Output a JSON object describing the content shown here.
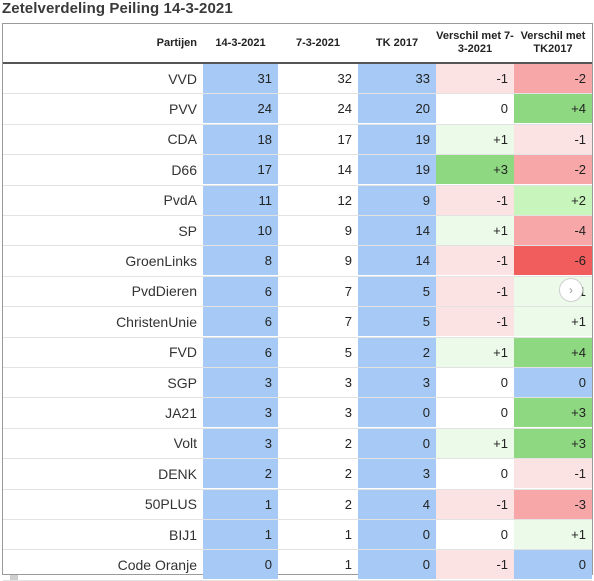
{
  "title": "Zetelverdeling Peiling 14-3-2021",
  "headers": {
    "party": "Partijen",
    "poll_current": "14-3-2021",
    "poll_previous": "7-3-2021",
    "election": "TK 2017",
    "diff_prev": "Verschil met 7-3-2021",
    "diff_election": "Verschil met TK2017"
  },
  "colors": {
    "blue": "#a6c9f5",
    "neutral": "#ffffff",
    "red_light": "#fbe3e3",
    "red_mid": "#f7a7a7",
    "red_strong": "#f15c5c",
    "green_light": "#ecfae9",
    "green_mid": "#c7f5bb",
    "green_strong": "#8fd882"
  },
  "rows": [
    {
      "party": "VVD",
      "cur": "31",
      "prev": "32",
      "tk": "33",
      "d_prev": "-1",
      "d_tk": "-2"
    },
    {
      "party": "PVV",
      "cur": "24",
      "prev": "24",
      "tk": "20",
      "d_prev": "0",
      "d_tk": "+4"
    },
    {
      "party": "CDA",
      "cur": "18",
      "prev": "17",
      "tk": "19",
      "d_prev": "+1",
      "d_tk": "-1"
    },
    {
      "party": "D66",
      "cur": "17",
      "prev": "14",
      "tk": "19",
      "d_prev": "+3",
      "d_tk": "-2"
    },
    {
      "party": "PvdA",
      "cur": "11",
      "prev": "12",
      "tk": "9",
      "d_prev": "-1",
      "d_tk": "+2"
    },
    {
      "party": "SP",
      "cur": "10",
      "prev": "9",
      "tk": "14",
      "d_prev": "+1",
      "d_tk": "-4"
    },
    {
      "party": "GroenLinks",
      "cur": "8",
      "prev": "9",
      "tk": "14",
      "d_prev": "-1",
      "d_tk": "-6"
    },
    {
      "party": "PvdDieren",
      "cur": "6",
      "prev": "7",
      "tk": "5",
      "d_prev": "-1",
      "d_tk": "+1"
    },
    {
      "party": "ChristenUnie",
      "cur": "6",
      "prev": "7",
      "tk": "5",
      "d_prev": "-1",
      "d_tk": "+1"
    },
    {
      "party": "FVD",
      "cur": "6",
      "prev": "5",
      "tk": "2",
      "d_prev": "+1",
      "d_tk": "+4"
    },
    {
      "party": "SGP",
      "cur": "3",
      "prev": "3",
      "tk": "3",
      "d_prev": "0",
      "d_tk": "0"
    },
    {
      "party": "JA21",
      "cur": "3",
      "prev": "3",
      "tk": "0",
      "d_prev": "0",
      "d_tk": "+3"
    },
    {
      "party": "Volt",
      "cur": "3",
      "prev": "2",
      "tk": "0",
      "d_prev": "+1",
      "d_tk": "+3"
    },
    {
      "party": "DENK",
      "cur": "2",
      "prev": "2",
      "tk": "3",
      "d_prev": "0",
      "d_tk": "-1"
    },
    {
      "party": "50PLUS",
      "cur": "1",
      "prev": "2",
      "tk": "4",
      "d_prev": "-1",
      "d_tk": "-3"
    },
    {
      "party": "BIJ1",
      "cur": "1",
      "prev": "1",
      "tk": "0",
      "d_prev": "0",
      "d_tk": "+1"
    },
    {
      "party": "Code Oranje",
      "cur": "0",
      "prev": "1",
      "tk": "0",
      "d_prev": "-1",
      "d_tk": "0"
    }
  ]
}
